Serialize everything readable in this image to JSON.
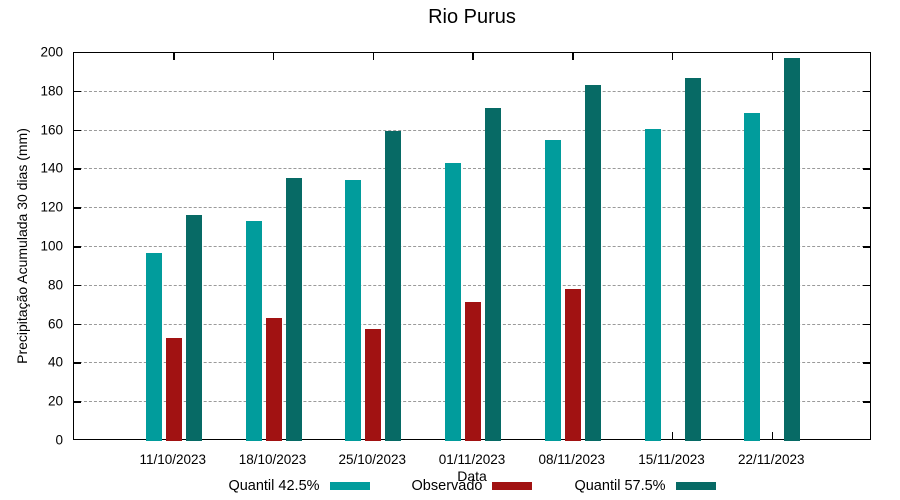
{
  "title": "Rio Purus",
  "chart_data": {
    "type": "bar",
    "title": "Rio Purus",
    "xlabel": "Data",
    "ylabel": "Precipitação Acumulada 30 dias (mm)",
    "categories": [
      "11/10/2023",
      "18/10/2023",
      "25/10/2023",
      "01/11/2023",
      "08/11/2023",
      "15/11/2023",
      "22/11/2023"
    ],
    "series": [
      {
        "name": "Quantil 42.5%",
        "color": "#019c9c",
        "values": [
          97,
          113.5,
          134.5,
          143.5,
          155,
          161,
          169
        ]
      },
      {
        "name": "Observado",
        "color": "#a11212",
        "values": [
          53,
          63.5,
          57.5,
          71.5,
          78.5,
          null,
          null
        ]
      },
      {
        "name": "Quantil 57.5%",
        "color": "#076a65",
        "values": [
          116.5,
          135.5,
          160,
          171.5,
          183.5,
          187,
          197.5
        ]
      }
    ],
    "ylim": [
      0,
      200
    ],
    "ytick_step": 20,
    "grid": true,
    "grid_color": "#9a9a9a",
    "axis_color": "#000000",
    "legend_position": "bottom"
  }
}
